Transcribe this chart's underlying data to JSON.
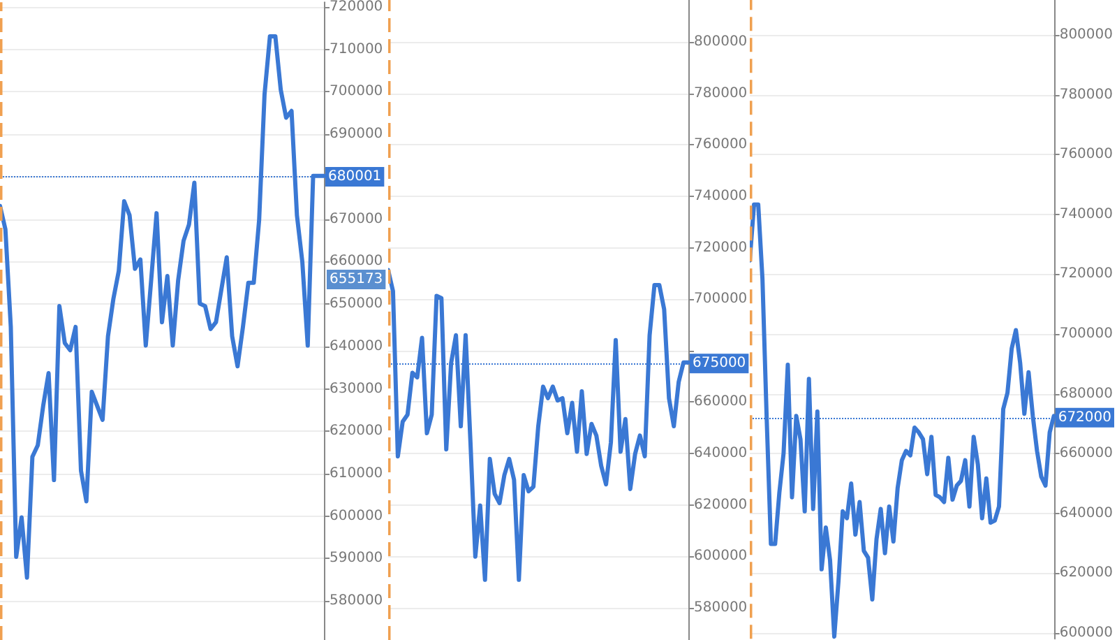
{
  "chart_data": [
    {
      "type": "line",
      "color": "#3a78d4",
      "line_style": "solid",
      "grid": "y",
      "tick_labels": "y",
      "categories": [
        null,
        null,
        null,
        null,
        null,
        null,
        null,
        null,
        null,
        null,
        null,
        null,
        null,
        null,
        null,
        null,
        null,
        null,
        null,
        null,
        null,
        null,
        null,
        null,
        null,
        null,
        null,
        null,
        null,
        null,
        null,
        null,
        null,
        null,
        null,
        null,
        null,
        null,
        null,
        null,
        null,
        null,
        null,
        null,
        null,
        null,
        null,
        null,
        null,
        null,
        null,
        null,
        null,
        null,
        null,
        null,
        null,
        null,
        null,
        null,
        null
      ],
      "values": [
        673100,
        667600,
        644600,
        590400,
        599700,
        585500,
        614000,
        616700,
        626000,
        633700,
        608500,
        649500,
        640800,
        639100,
        644600,
        610700,
        603500,
        629300,
        626000,
        622700,
        642400,
        651200,
        657800,
        674200,
        670900,
        658300,
        660500,
        640200,
        655600,
        671400,
        645700,
        656600,
        640200,
        655600,
        664900,
        668700,
        678600,
        650100,
        649500,
        644100,
        645700,
        653400,
        661000,
        642400,
        635300,
        644600,
        655000,
        655000,
        669800,
        699400,
        713100,
        713100,
        700500,
        693900,
        695500,
        670900,
        659900,
        640200,
        680200,
        680200,
        680200
      ],
      "ylim": [
        570800,
        721100
      ],
      "yticks": [
        580000,
        590000,
        600000,
        610000,
        620000,
        630000,
        640000,
        650000,
        660000,
        670000,
        {
          "value": 680000,
          "label": null
        },
        690000,
        700000,
        710000,
        720000
      ],
      "ref_lines": [
        {
          "axis": "y",
          "value": 680001,
          "label": "680001",
          "color": "#3a78d4",
          "line_style": "dotted"
        }
      ],
      "annotations": [
        "655173"
      ]
    },
    {
      "type": "line",
      "color": "#3a78d4",
      "line_style": "solid",
      "grid": "y",
      "tick_labels": "y",
      "categories": [
        null,
        null,
        null,
        null,
        null,
        null,
        null,
        null,
        null,
        null,
        null,
        null,
        null,
        null,
        null,
        null,
        null,
        null,
        null,
        null,
        null,
        null,
        null,
        null,
        null,
        null,
        null,
        null,
        null,
        null,
        null,
        null,
        null,
        null,
        null,
        null,
        null,
        null,
        null,
        null,
        null,
        null,
        null,
        null,
        null,
        null,
        null,
        null,
        null,
        null,
        null,
        null,
        null,
        null,
        null,
        null,
        null,
        null,
        null,
        null,
        null,
        null,
        null
      ],
      "values": [
        711300,
        703100,
        638900,
        652400,
        655100,
        671400,
        669600,
        685000,
        647900,
        655100,
        701300,
        700400,
        641600,
        675100,
        686000,
        650600,
        686000,
        644300,
        599900,
        619800,
        590900,
        637900,
        624300,
        620700,
        631600,
        637900,
        629800,
        590900,
        631600,
        625300,
        627100,
        650600,
        666000,
        661500,
        666000,
        660600,
        661500,
        647900,
        659700,
        640700,
        664200,
        639800,
        651500,
        647000,
        635200,
        628000,
        644300,
        684100,
        640700,
        653400,
        626200,
        639800,
        647000,
        638900,
        686000,
        705500,
        705500,
        696100,
        661500,
        650600,
        667800,
        675400,
        675400
      ],
      "ylim": [
        567500,
        816300
      ],
      "yticks": [
        580000,
        600000,
        620000,
        640000,
        660000,
        {
          "value": 680000,
          "label": null
        },
        700000,
        720000,
        740000,
        760000,
        780000,
        800000
      ],
      "ref_lines": [
        {
          "axis": "y",
          "value": 675000,
          "label": "675000",
          "color": "#3a78d4",
          "line_style": "dotted"
        }
      ]
    },
    {
      "type": "line",
      "color": "#3a78d4",
      "line_style": "solid",
      "grid": "y",
      "tick_labels": "y",
      "categories": [
        null,
        null,
        null,
        null,
        null,
        null,
        null,
        null,
        null,
        null,
        null,
        null,
        null,
        null,
        null,
        null,
        null,
        null,
        null,
        null,
        null,
        null,
        null,
        null,
        null,
        null,
        null,
        null,
        null,
        null,
        null,
        null,
        null,
        null,
        null,
        null,
        null,
        null,
        null,
        null,
        null,
        null,
        null,
        null,
        null,
        null,
        null,
        null,
        null,
        null,
        null,
        null,
        null,
        null,
        null,
        null,
        null,
        null,
        null,
        null,
        null,
        null,
        null,
        null,
        null,
        null,
        null,
        null,
        null,
        null,
        null,
        null,
        null
      ],
      "values": [
        724600,
        743300,
        743300,
        718400,
        671800,
        629800,
        629800,
        646900,
        660100,
        689700,
        645400,
        672600,
        664800,
        640700,
        685000,
        641500,
        674100,
        621300,
        635300,
        624400,
        598800,
        617400,
        640700,
        638400,
        650000,
        632900,
        643800,
        627500,
        625200,
        611200,
        631400,
        641500,
        626700,
        642300,
        630600,
        648500,
        657800,
        660900,
        659400,
        668700,
        667100,
        664800,
        653100,
        665600,
        646200,
        645400,
        643800,
        658600,
        644600,
        649300,
        650900,
        657800,
        642300,
        665600,
        656300,
        638400,
        651700,
        636900,
        637600,
        642300,
        674900,
        680300,
        695100,
        701300,
        690400,
        673300,
        687200,
        672600,
        660900,
        652300,
        649300,
        667100,
        672600
      ],
      "ylim": [
        598100,
        811700
      ],
      "yticks": [
        600000,
        620000,
        640000,
        660000,
        680000,
        700000,
        720000,
        740000,
        760000,
        780000,
        800000
      ],
      "ref_lines": [
        {
          "axis": "y",
          "value": 672000,
          "label": "672000",
          "color": "#3a78d4",
          "line_style": "dotted"
        }
      ]
    }
  ]
}
